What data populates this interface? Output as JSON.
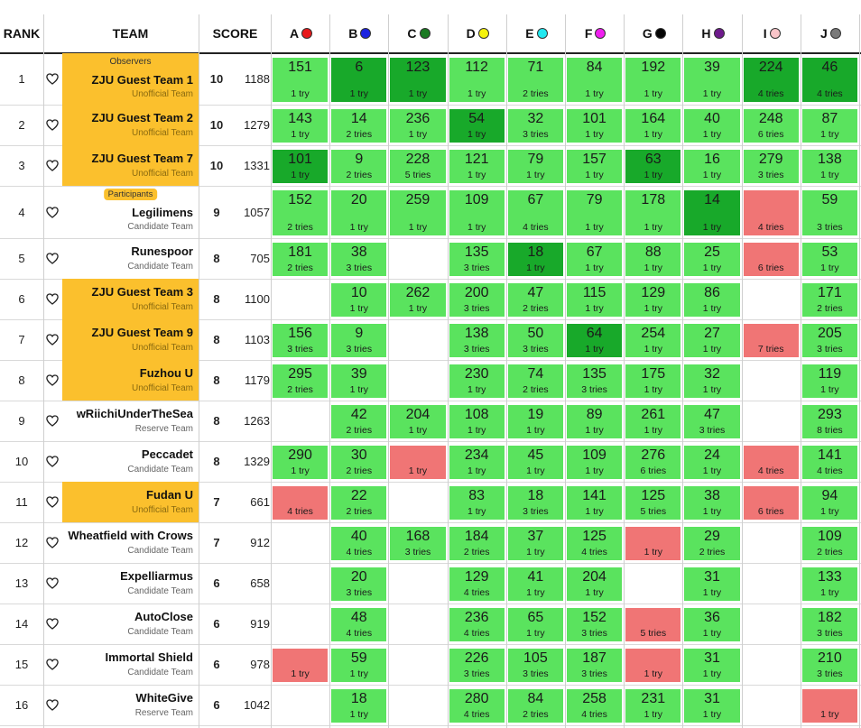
{
  "header": {
    "rank": "RANK",
    "team": "TEAM",
    "score": "SCORE",
    "problems": [
      {
        "letter": "A",
        "color": "#e8191b"
      },
      {
        "letter": "B",
        "color": "#1b22e0"
      },
      {
        "letter": "C",
        "color": "#1a7a22"
      },
      {
        "letter": "D",
        "color": "#f4f20c"
      },
      {
        "letter": "E",
        "color": "#22e8f0"
      },
      {
        "letter": "F",
        "color": "#f01ff0"
      },
      {
        "letter": "G",
        "color": "#050505"
      },
      {
        "letter": "H",
        "color": "#6e1a8c"
      },
      {
        "letter": "I",
        "color": "#f8c4c8"
      },
      {
        "letter": "J",
        "color": "#7a7a7a"
      }
    ]
  },
  "rows": [
    {
      "rank": "1",
      "name": "ZJU Guest Team 1",
      "sub": "Unofficial Team",
      "group": "Observers",
      "highlight": true,
      "solved": "10",
      "penalty": "1188",
      "cells": [
        {
          "s": "ok",
          "t": "151",
          "n": "1 try"
        },
        {
          "s": "first",
          "t": "6",
          "n": "1 try"
        },
        {
          "s": "first",
          "t": "123",
          "n": "1 try"
        },
        {
          "s": "ok",
          "t": "112",
          "n": "1 try"
        },
        {
          "s": "ok",
          "t": "71",
          "n": "2 tries"
        },
        {
          "s": "ok",
          "t": "84",
          "n": "1 try"
        },
        {
          "s": "ok",
          "t": "192",
          "n": "1 try"
        },
        {
          "s": "ok",
          "t": "39",
          "n": "1 try"
        },
        {
          "s": "first",
          "t": "224",
          "n": "4 tries"
        },
        {
          "s": "first",
          "t": "46",
          "n": "4 tries"
        }
      ]
    },
    {
      "rank": "2",
      "name": "ZJU Guest Team 2",
      "sub": "Unofficial Team",
      "highlight": true,
      "solved": "10",
      "penalty": "1279",
      "cells": [
        {
          "s": "ok",
          "t": "143",
          "n": "1 try"
        },
        {
          "s": "ok",
          "t": "14",
          "n": "2 tries"
        },
        {
          "s": "ok",
          "t": "236",
          "n": "1 try"
        },
        {
          "s": "first",
          "t": "54",
          "n": "1 try"
        },
        {
          "s": "ok",
          "t": "32",
          "n": "3 tries"
        },
        {
          "s": "ok",
          "t": "101",
          "n": "1 try"
        },
        {
          "s": "ok",
          "t": "164",
          "n": "1 try"
        },
        {
          "s": "ok",
          "t": "40",
          "n": "1 try"
        },
        {
          "s": "ok",
          "t": "248",
          "n": "6 tries"
        },
        {
          "s": "ok",
          "t": "87",
          "n": "1 try"
        }
      ]
    },
    {
      "rank": "3",
      "name": "ZJU Guest Team 7",
      "sub": "Unofficial Team",
      "highlight": true,
      "solved": "10",
      "penalty": "1331",
      "cells": [
        {
          "s": "first",
          "t": "101",
          "n": "1 try"
        },
        {
          "s": "ok",
          "t": "9",
          "n": "2 tries"
        },
        {
          "s": "ok",
          "t": "228",
          "n": "5 tries"
        },
        {
          "s": "ok",
          "t": "121",
          "n": "1 try"
        },
        {
          "s": "ok",
          "t": "79",
          "n": "1 try"
        },
        {
          "s": "ok",
          "t": "157",
          "n": "1 try"
        },
        {
          "s": "first",
          "t": "63",
          "n": "1 try"
        },
        {
          "s": "ok",
          "t": "16",
          "n": "1 try"
        },
        {
          "s": "ok",
          "t": "279",
          "n": "3 tries"
        },
        {
          "s": "ok",
          "t": "138",
          "n": "1 try"
        }
      ]
    },
    {
      "rank": "4",
      "name": "Legilimens",
      "sub": "Candidate Team",
      "group": "Participants",
      "highlight": false,
      "solved": "9",
      "penalty": "1057",
      "cells": [
        {
          "s": "ok",
          "t": "152",
          "n": "2 tries"
        },
        {
          "s": "ok",
          "t": "20",
          "n": "1 try"
        },
        {
          "s": "ok",
          "t": "259",
          "n": "1 try"
        },
        {
          "s": "ok",
          "t": "109",
          "n": "1 try"
        },
        {
          "s": "ok",
          "t": "67",
          "n": "4 tries"
        },
        {
          "s": "ok",
          "t": "79",
          "n": "1 try"
        },
        {
          "s": "ok",
          "t": "178",
          "n": "1 try"
        },
        {
          "s": "first",
          "t": "14",
          "n": "1 try"
        },
        {
          "s": "fail",
          "t": "",
          "n": "4 tries"
        },
        {
          "s": "ok",
          "t": "59",
          "n": "3 tries"
        }
      ]
    },
    {
      "rank": "5",
      "name": "Runespoor",
      "sub": "Candidate Team",
      "highlight": false,
      "solved": "8",
      "penalty": "705",
      "cells": [
        {
          "s": "ok",
          "t": "181",
          "n": "2 tries"
        },
        {
          "s": "ok",
          "t": "38",
          "n": "3 tries"
        },
        {
          "s": "none",
          "t": "",
          "n": ""
        },
        {
          "s": "ok",
          "t": "135",
          "n": "3 tries"
        },
        {
          "s": "first",
          "t": "18",
          "n": "1 try"
        },
        {
          "s": "ok",
          "t": "67",
          "n": "1 try"
        },
        {
          "s": "ok",
          "t": "88",
          "n": "1 try"
        },
        {
          "s": "ok",
          "t": "25",
          "n": "1 try"
        },
        {
          "s": "fail",
          "t": "",
          "n": "6 tries"
        },
        {
          "s": "ok",
          "t": "53",
          "n": "1 try"
        }
      ]
    },
    {
      "rank": "6",
      "name": "ZJU Guest Team 3",
      "sub": "Unofficial Team",
      "highlight": true,
      "solved": "8",
      "penalty": "1100",
      "cells": [
        {
          "s": "none",
          "t": "",
          "n": ""
        },
        {
          "s": "ok",
          "t": "10",
          "n": "1 try"
        },
        {
          "s": "ok",
          "t": "262",
          "n": "1 try"
        },
        {
          "s": "ok",
          "t": "200",
          "n": "3 tries"
        },
        {
          "s": "ok",
          "t": "47",
          "n": "2 tries"
        },
        {
          "s": "ok",
          "t": "115",
          "n": "1 try"
        },
        {
          "s": "ok",
          "t": "129",
          "n": "1 try"
        },
        {
          "s": "ok",
          "t": "86",
          "n": "1 try"
        },
        {
          "s": "none",
          "t": "",
          "n": ""
        },
        {
          "s": "ok",
          "t": "171",
          "n": "2 tries"
        }
      ]
    },
    {
      "rank": "7",
      "name": "ZJU Guest Team 9",
      "sub": "Unofficial Team",
      "highlight": true,
      "solved": "8",
      "penalty": "1103",
      "cells": [
        {
          "s": "ok",
          "t": "156",
          "n": "3 tries"
        },
        {
          "s": "ok",
          "t": "9",
          "n": "3 tries"
        },
        {
          "s": "none",
          "t": "",
          "n": ""
        },
        {
          "s": "ok",
          "t": "138",
          "n": "3 tries"
        },
        {
          "s": "ok",
          "t": "50",
          "n": "3 tries"
        },
        {
          "s": "first",
          "t": "64",
          "n": "1 try"
        },
        {
          "s": "ok",
          "t": "254",
          "n": "1 try"
        },
        {
          "s": "ok",
          "t": "27",
          "n": "1 try"
        },
        {
          "s": "fail",
          "t": "",
          "n": "7 tries"
        },
        {
          "s": "ok",
          "t": "205",
          "n": "3 tries"
        }
      ]
    },
    {
      "rank": "8",
      "name": "Fuzhou U",
      "sub": "Unofficial Team",
      "highlight": true,
      "solved": "8",
      "penalty": "1179",
      "cells": [
        {
          "s": "ok",
          "t": "295",
          "n": "2 tries"
        },
        {
          "s": "ok",
          "t": "39",
          "n": "1 try"
        },
        {
          "s": "none",
          "t": "",
          "n": ""
        },
        {
          "s": "ok",
          "t": "230",
          "n": "1 try"
        },
        {
          "s": "ok",
          "t": "74",
          "n": "2 tries"
        },
        {
          "s": "ok",
          "t": "135",
          "n": "3 tries"
        },
        {
          "s": "ok",
          "t": "175",
          "n": "1 try"
        },
        {
          "s": "ok",
          "t": "32",
          "n": "1 try"
        },
        {
          "s": "none",
          "t": "",
          "n": ""
        },
        {
          "s": "ok",
          "t": "119",
          "n": "1 try"
        }
      ]
    },
    {
      "rank": "9",
      "name": "wRiichiUnderTheSea",
      "sub": "Reserve Team",
      "highlight": false,
      "solved": "8",
      "penalty": "1263",
      "cells": [
        {
          "s": "none",
          "t": "",
          "n": ""
        },
        {
          "s": "ok",
          "t": "42",
          "n": "2 tries"
        },
        {
          "s": "ok",
          "t": "204",
          "n": "1 try"
        },
        {
          "s": "ok",
          "t": "108",
          "n": "1 try"
        },
        {
          "s": "ok",
          "t": "19",
          "n": "1 try"
        },
        {
          "s": "ok",
          "t": "89",
          "n": "1 try"
        },
        {
          "s": "ok",
          "t": "261",
          "n": "1 try"
        },
        {
          "s": "ok",
          "t": "47",
          "n": "3 tries"
        },
        {
          "s": "none",
          "t": "",
          "n": ""
        },
        {
          "s": "ok",
          "t": "293",
          "n": "8 tries"
        }
      ]
    },
    {
      "rank": "10",
      "name": "Peccadet",
      "sub": "Candidate Team",
      "highlight": false,
      "solved": "8",
      "penalty": "1329",
      "cells": [
        {
          "s": "ok",
          "t": "290",
          "n": "1 try"
        },
        {
          "s": "ok",
          "t": "30",
          "n": "2 tries"
        },
        {
          "s": "fail",
          "t": "",
          "n": "1 try"
        },
        {
          "s": "ok",
          "t": "234",
          "n": "1 try"
        },
        {
          "s": "ok",
          "t": "45",
          "n": "1 try"
        },
        {
          "s": "ok",
          "t": "109",
          "n": "1 try"
        },
        {
          "s": "ok",
          "t": "276",
          "n": "6 tries"
        },
        {
          "s": "ok",
          "t": "24",
          "n": "1 try"
        },
        {
          "s": "fail",
          "t": "",
          "n": "4 tries"
        },
        {
          "s": "ok",
          "t": "141",
          "n": "4 tries"
        }
      ]
    },
    {
      "rank": "11",
      "name": "Fudan U",
      "sub": "Unofficial Team",
      "highlight": true,
      "solved": "7",
      "penalty": "661",
      "cells": [
        {
          "s": "fail",
          "t": "",
          "n": "4 tries"
        },
        {
          "s": "ok",
          "t": "22",
          "n": "2 tries"
        },
        {
          "s": "none",
          "t": "",
          "n": ""
        },
        {
          "s": "ok",
          "t": "83",
          "n": "1 try"
        },
        {
          "s": "ok",
          "t": "18",
          "n": "3 tries"
        },
        {
          "s": "ok",
          "t": "141",
          "n": "1 try"
        },
        {
          "s": "ok",
          "t": "125",
          "n": "5 tries"
        },
        {
          "s": "ok",
          "t": "38",
          "n": "1 try"
        },
        {
          "s": "fail",
          "t": "",
          "n": "6 tries"
        },
        {
          "s": "ok",
          "t": "94",
          "n": "1 try"
        }
      ]
    },
    {
      "rank": "12",
      "name": "Wheatfield with Crows",
      "sub": "Candidate Team",
      "highlight": false,
      "solved": "7",
      "penalty": "912",
      "cells": [
        {
          "s": "none",
          "t": "",
          "n": ""
        },
        {
          "s": "ok",
          "t": "40",
          "n": "4 tries"
        },
        {
          "s": "ok",
          "t": "168",
          "n": "3 tries"
        },
        {
          "s": "ok",
          "t": "184",
          "n": "2 tries"
        },
        {
          "s": "ok",
          "t": "37",
          "n": "1 try"
        },
        {
          "s": "ok",
          "t": "125",
          "n": "4 tries"
        },
        {
          "s": "fail",
          "t": "",
          "n": "1 try"
        },
        {
          "s": "ok",
          "t": "29",
          "n": "2 tries"
        },
        {
          "s": "none",
          "t": "",
          "n": ""
        },
        {
          "s": "ok",
          "t": "109",
          "n": "2 tries"
        }
      ]
    },
    {
      "rank": "13",
      "name": "Expelliarmus",
      "sub": "Candidate Team",
      "highlight": false,
      "solved": "6",
      "penalty": "658",
      "cells": [
        {
          "s": "none",
          "t": "",
          "n": ""
        },
        {
          "s": "ok",
          "t": "20",
          "n": "3 tries"
        },
        {
          "s": "none",
          "t": "",
          "n": ""
        },
        {
          "s": "ok",
          "t": "129",
          "n": "4 tries"
        },
        {
          "s": "ok",
          "t": "41",
          "n": "1 try"
        },
        {
          "s": "ok",
          "t": "204",
          "n": "1 try"
        },
        {
          "s": "none",
          "t": "",
          "n": ""
        },
        {
          "s": "ok",
          "t": "31",
          "n": "1 try"
        },
        {
          "s": "none",
          "t": "",
          "n": ""
        },
        {
          "s": "ok",
          "t": "133",
          "n": "1 try"
        }
      ]
    },
    {
      "rank": "14",
      "name": "AutoClose",
      "sub": "Candidate Team",
      "highlight": false,
      "solved": "6",
      "penalty": "919",
      "cells": [
        {
          "s": "none",
          "t": "",
          "n": ""
        },
        {
          "s": "ok",
          "t": "48",
          "n": "4 tries"
        },
        {
          "s": "none",
          "t": "",
          "n": ""
        },
        {
          "s": "ok",
          "t": "236",
          "n": "4 tries"
        },
        {
          "s": "ok",
          "t": "65",
          "n": "1 try"
        },
        {
          "s": "ok",
          "t": "152",
          "n": "3 tries"
        },
        {
          "s": "fail",
          "t": "",
          "n": "5 tries"
        },
        {
          "s": "ok",
          "t": "36",
          "n": "1 try"
        },
        {
          "s": "none",
          "t": "",
          "n": ""
        },
        {
          "s": "ok",
          "t": "182",
          "n": "3 tries"
        }
      ]
    },
    {
      "rank": "15",
      "name": "Immortal Shield",
      "sub": "Candidate Team",
      "highlight": false,
      "solved": "6",
      "penalty": "978",
      "cells": [
        {
          "s": "fail",
          "t": "",
          "n": "1 try"
        },
        {
          "s": "ok",
          "t": "59",
          "n": "1 try"
        },
        {
          "s": "none",
          "t": "",
          "n": ""
        },
        {
          "s": "ok",
          "t": "226",
          "n": "3 tries"
        },
        {
          "s": "ok",
          "t": "105",
          "n": "3 tries"
        },
        {
          "s": "ok",
          "t": "187",
          "n": "3 tries"
        },
        {
          "s": "fail",
          "t": "",
          "n": "1 try"
        },
        {
          "s": "ok",
          "t": "31",
          "n": "1 try"
        },
        {
          "s": "none",
          "t": "",
          "n": ""
        },
        {
          "s": "ok",
          "t": "210",
          "n": "3 tries"
        }
      ]
    },
    {
      "rank": "16",
      "name": "WhiteGive",
      "sub": "Reserve Team",
      "highlight": false,
      "solved": "6",
      "penalty": "1042",
      "cells": [
        {
          "s": "none",
          "t": "",
          "n": ""
        },
        {
          "s": "ok",
          "t": "18",
          "n": "1 try"
        },
        {
          "s": "none",
          "t": "",
          "n": ""
        },
        {
          "s": "ok",
          "t": "280",
          "n": "4 tries"
        },
        {
          "s": "ok",
          "t": "84",
          "n": "2 tries"
        },
        {
          "s": "ok",
          "t": "258",
          "n": "4 tries"
        },
        {
          "s": "ok",
          "t": "231",
          "n": "1 try"
        },
        {
          "s": "ok",
          "t": "31",
          "n": "1 try"
        },
        {
          "s": "none",
          "t": "",
          "n": ""
        },
        {
          "s": "fail",
          "t": "",
          "n": "1 try"
        }
      ]
    }
  ]
}
